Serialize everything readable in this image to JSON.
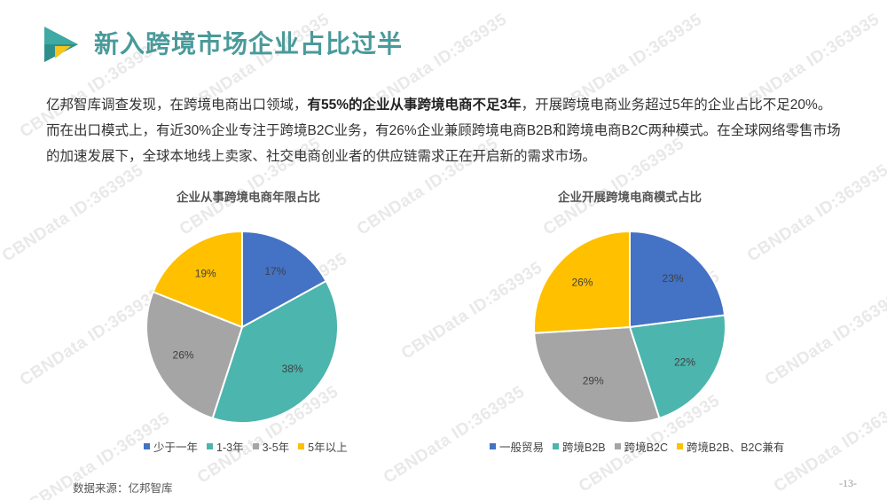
{
  "header": {
    "title": "新入跨境市场企业占比过半"
  },
  "intro": {
    "part1": "亿邦智库调查发现，在跨境电商出口领域，",
    "bold": "有55%的企业从事跨境电商不足3年",
    "part2": "，开展跨境电商业务超过5年的企业占比不足20%。而在出口模式上，有近30%企业专注于跨境B2C业务，有26%企业兼顾跨境电商B2B和跨境电商B2C两种模式。在全球网络零售市场的加速发展下，全球本地线上卖家、社交电商创业者的供应链需求正在开启新的需求市场。"
  },
  "watermark": "CBNData ID:363935",
  "chart_data": [
    {
      "type": "pie",
      "title": "企业从事跨境电商年限占比",
      "categories": [
        "少于一年",
        "1-3年",
        "3-5年",
        "5年以上"
      ],
      "values": [
        17,
        38,
        26,
        19
      ],
      "labels": [
        "17%",
        "38%",
        "26%",
        "19%"
      ],
      "colors": [
        "#4472C4",
        "#4BB5AE",
        "#A5A5A5",
        "#FFC000"
      ],
      "legend_position": "bottom"
    },
    {
      "type": "pie",
      "title": "企业开展跨境电商模式占比",
      "categories": [
        "一般贸易",
        "跨境B2B",
        "跨境B2C",
        "跨境B2B、B2C兼有"
      ],
      "values": [
        23,
        22,
        29,
        26
      ],
      "labels": [
        "23%",
        "22%",
        "29%",
        "26%"
      ],
      "colors": [
        "#4472C4",
        "#4BB5AE",
        "#A5A5A5",
        "#FFC000"
      ],
      "legend_position": "bottom"
    }
  ],
  "footer": {
    "source": "数据来源：亿邦智库",
    "page": "-13-"
  }
}
